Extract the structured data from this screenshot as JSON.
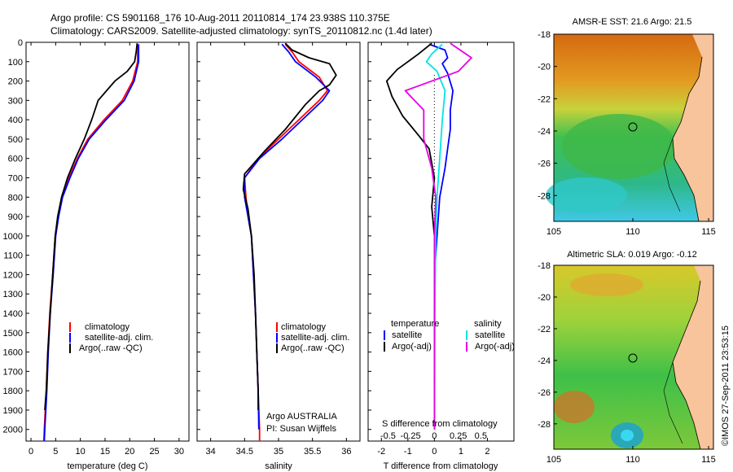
{
  "header": {
    "line1": "Argo profile: CS 5901168_176 10-Aug-2011 20110814_174 23.938S 110.375E",
    "line2": "Climatology: CARS2009. Satellite-adjusted climatology: synTS_20110812.nc (1.4d later)"
  },
  "credit": "©IMOS 27-Sep-2011 23:53:15",
  "colors": {
    "climatology": "#ff0000",
    "satellite": "#0000ff",
    "argo": "#000000",
    "sat_salinity": "#00e5e5",
    "argo_salinity": "#e600e6"
  },
  "chart_data": [
    {
      "type": "line",
      "id": "temperature",
      "xlabel": "temperature (deg C)",
      "ylabel": "",
      "xlim": [
        -1,
        32
      ],
      "ylim": [
        2060,
        0
      ],
      "xticks": [
        0,
        5,
        10,
        15,
        20,
        25,
        30
      ],
      "yticks": [
        0,
        100,
        200,
        300,
        400,
        500,
        600,
        700,
        800,
        900,
        1000,
        1100,
        1200,
        1300,
        1400,
        1500,
        1600,
        1700,
        1800,
        1900,
        2000
      ],
      "legend": [
        "climatology",
        "satellite-adj. clim.",
        "Argo(..raw -QC)"
      ],
      "series": [
        {
          "name": "climatology",
          "color": "#ff0000",
          "points": [
            [
              21.6,
              10
            ],
            [
              21.6,
              100
            ],
            [
              20.6,
              200
            ],
            [
              18.5,
              300
            ],
            [
              14.8,
              400
            ],
            [
              11.5,
              500
            ],
            [
              9.4,
              600
            ],
            [
              7.7,
              700
            ],
            [
              6.3,
              800
            ],
            [
              5.5,
              900
            ],
            [
              4.9,
              1000
            ],
            [
              4.4,
              1200
            ],
            [
              3.8,
              1400
            ],
            [
              3.4,
              1600
            ],
            [
              3.1,
              1800
            ],
            [
              2.7,
              2000
            ],
            [
              2.6,
              2060
            ]
          ]
        },
        {
          "name": "satellite-adj. clim.",
          "color": "#0000ff",
          "points": [
            [
              21.8,
              10
            ],
            [
              21.8,
              100
            ],
            [
              20.9,
              200
            ],
            [
              18.9,
              300
            ],
            [
              15.2,
              400
            ],
            [
              11.8,
              500
            ],
            [
              9.6,
              600
            ],
            [
              7.9,
              700
            ],
            [
              6.4,
              800
            ],
            [
              5.6,
              900
            ],
            [
              5.0,
              1000
            ],
            [
              4.5,
              1200
            ],
            [
              3.9,
              1400
            ],
            [
              3.5,
              1600
            ],
            [
              3.2,
              1800
            ],
            [
              2.8,
              2000
            ],
            [
              2.7,
              2060
            ]
          ]
        },
        {
          "name": "Argo(..raw -QC)",
          "color": "#000000",
          "points": [
            [
              21.5,
              5
            ],
            [
              21.3,
              50
            ],
            [
              21.0,
              100
            ],
            [
              19.5,
              150
            ],
            [
              17.0,
              200
            ],
            [
              15.3,
              250
            ],
            [
              13.6,
              300
            ],
            [
              12.3,
              400
            ],
            [
              10.8,
              500
            ],
            [
              9.0,
              600
            ],
            [
              7.4,
              700
            ],
            [
              6.2,
              800
            ],
            [
              5.4,
              900
            ],
            [
              4.9,
              1000
            ],
            [
              4.4,
              1200
            ],
            [
              3.9,
              1400
            ],
            [
              3.4,
              1600
            ],
            [
              3.1,
              1800
            ],
            [
              2.8,
              1900
            ]
          ]
        }
      ]
    },
    {
      "type": "line",
      "id": "salinity",
      "xlabel": "salinity",
      "xlim": [
        33.8,
        36.2
      ],
      "ylim": [
        2060,
        0
      ],
      "xticks": [
        34,
        34.5,
        35,
        35.5,
        36
      ],
      "legend": [
        "climatology",
        "satellite-adj. clim.",
        "Argo(..raw -QC)"
      ],
      "note": [
        "Argo AUSTRALIA",
        "PI: Susan Wijffels"
      ],
      "series": [
        {
          "name": "climatology",
          "color": "#ff0000",
          "points": [
            [
              35.1,
              10
            ],
            [
              35.2,
              50
            ],
            [
              35.3,
              100
            ],
            [
              35.6,
              180
            ],
            [
              35.72,
              250
            ],
            [
              35.6,
              300
            ],
            [
              35.3,
              400
            ],
            [
              35.0,
              500
            ],
            [
              34.7,
              600
            ],
            [
              34.5,
              700
            ],
            [
              34.52,
              800
            ],
            [
              34.55,
              900
            ],
            [
              34.6,
              1000
            ],
            [
              34.63,
              1200
            ],
            [
              34.66,
              1400
            ],
            [
              34.68,
              1600
            ],
            [
              34.7,
              1800
            ],
            [
              34.72,
              2000
            ],
            [
              34.72,
              2060
            ]
          ]
        },
        {
          "name": "satellite-adj. clim.",
          "color": "#0000ff",
          "points": [
            [
              35.05,
              10
            ],
            [
              35.15,
              50
            ],
            [
              35.25,
              100
            ],
            [
              35.55,
              180
            ],
            [
              35.75,
              250
            ],
            [
              35.65,
              300
            ],
            [
              35.35,
              400
            ],
            [
              35.05,
              500
            ],
            [
              34.72,
              600
            ],
            [
              34.5,
              700
            ],
            [
              34.5,
              800
            ],
            [
              34.55,
              900
            ],
            [
              34.6,
              1000
            ],
            [
              34.63,
              1200
            ],
            [
              34.66,
              1400
            ],
            [
              34.68,
              1600
            ],
            [
              34.7,
              1800
            ],
            [
              34.71,
              2000
            ]
          ]
        },
        {
          "name": "Argo(..raw -QC)",
          "color": "#000000",
          "points": [
            [
              35.1,
              5
            ],
            [
              35.2,
              40
            ],
            [
              35.45,
              80
            ],
            [
              35.75,
              110
            ],
            [
              35.85,
              170
            ],
            [
              35.75,
              220
            ],
            [
              35.6,
              250
            ],
            [
              35.4,
              320
            ],
            [
              35.1,
              450
            ],
            [
              34.8,
              560
            ],
            [
              34.5,
              680
            ],
            [
              34.48,
              760
            ],
            [
              34.55,
              860
            ],
            [
              34.6,
              1000
            ],
            [
              34.64,
              1200
            ],
            [
              34.66,
              1400
            ],
            [
              34.68,
              1600
            ],
            [
              34.7,
              1800
            ],
            [
              34.7,
              1900
            ]
          ]
        }
      ]
    },
    {
      "type": "line",
      "id": "difference",
      "xlabel": "T difference from climatology",
      "xlabel_top": "S difference from climatology",
      "xlim": [
        -2.5,
        3
      ],
      "ylim": [
        2060,
        0
      ],
      "xticks": [
        -2,
        -1,
        0,
        1,
        2
      ],
      "xticks_s": [
        "-0.5",
        "-0.25",
        "0",
        "0.25",
        "0.5"
      ],
      "legend_titles": [
        "temperature",
        "salinity"
      ],
      "legend": [
        "satellite",
        "Argo(-adj)",
        "satellite",
        "Argo(-adj)"
      ],
      "series": [
        {
          "name": "satellite",
          "color": "#0000ff",
          "points": [
            [
              -0.2,
              10
            ],
            [
              0.4,
              40
            ],
            [
              0.5,
              80
            ],
            [
              0.3,
              110
            ],
            [
              0.5,
              160
            ],
            [
              0.7,
              250
            ],
            [
              0.6,
              350
            ],
            [
              0.6,
              450
            ],
            [
              0.5,
              550
            ],
            [
              0.4,
              650
            ],
            [
              0.2,
              800
            ],
            [
              0.1,
              1000
            ],
            [
              0,
              1200
            ],
            [
              0,
              1600
            ],
            [
              0,
              2000
            ]
          ]
        },
        {
          "name": "Argo(-adj)",
          "color": "#000000",
          "points": [
            [
              -0.1,
              5
            ],
            [
              -0.6,
              60
            ],
            [
              -1.1,
              110
            ],
            [
              -1.4,
              140
            ],
            [
              -1.8,
              200
            ],
            [
              -1.6,
              280
            ],
            [
              -1.2,
              380
            ],
            [
              -0.6,
              480
            ],
            [
              -0.2,
              550
            ],
            [
              0,
              700
            ],
            [
              -0.1,
              850
            ],
            [
              0,
              1000
            ],
            [
              0,
              1400
            ],
            [
              0,
              1900
            ]
          ]
        },
        {
          "name": "satellite",
          "color": "#00e5e5",
          "points": [
            [
              0.3,
              10
            ],
            [
              -0.1,
              60
            ],
            [
              -0.3,
              100
            ],
            [
              0.1,
              150
            ],
            [
              0.4,
              250
            ],
            [
              0.3,
              400
            ],
            [
              0.2,
              600
            ],
            [
              0.1,
              800
            ],
            [
              0.05,
              1000
            ],
            [
              0.02,
              1400
            ],
            [
              0,
              2000
            ]
          ]
        },
        {
          "name": "Argo(-adj)",
          "color": "#e600e6",
          "points": [
            [
              0.6,
              5
            ],
            [
              1.4,
              80
            ],
            [
              0.9,
              150
            ],
            [
              -1.1,
              250
            ],
            [
              -0.4,
              350
            ],
            [
              -0.4,
              500
            ],
            [
              -0.1,
              650
            ],
            [
              0.05,
              800
            ],
            [
              0,
              1000
            ],
            [
              0,
              2000
            ]
          ]
        }
      ]
    }
  ],
  "maps": [
    {
      "title": "AMSR-E SST: 21.6 Argo: 21.5",
      "yticks": [
        "-18",
        "-20",
        "-22",
        "-24",
        "-26",
        "-28"
      ],
      "xticks": [
        "105",
        "110",
        "115"
      ]
    },
    {
      "title": "Altimetric SLA: 0.019 Argo: -0.12",
      "yticks": [
        "-18",
        "-20",
        "-22",
        "-24",
        "-26",
        "-28"
      ],
      "xticks": [
        "105",
        "110",
        "115"
      ]
    }
  ]
}
